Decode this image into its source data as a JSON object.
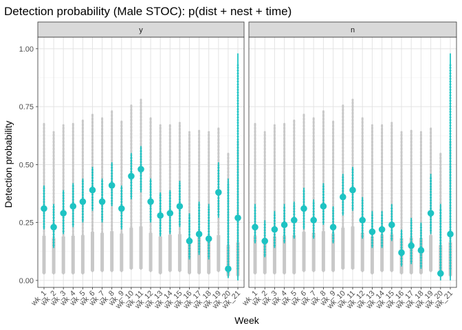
{
  "chart_data": {
    "type": "scatter",
    "title": "Detection probability (Male STOC): p(dist + nest + time)",
    "xlabel": "Week",
    "ylabel": "Detection probability",
    "ylim": [
      -0.03,
      1.05
    ],
    "yticks": [
      0.0,
      0.25,
      0.5,
      0.75,
      1.0
    ],
    "ytick_labels": [
      "0.00",
      "0.25",
      "0.50",
      "0.75",
      "1.00"
    ],
    "grid": true,
    "categories": [
      "wk_1",
      "wk_2",
      "wk_3",
      "wk_4",
      "wk_5",
      "wk_6",
      "wk_7",
      "wk_8",
      "wk_9",
      "wk_10",
      "wk_11",
      "wk_12",
      "wk_13",
      "wk_14",
      "wk_15",
      "wk_16",
      "wk_17",
      "wk_18",
      "wk_19",
      "wk_20",
      "wk_21"
    ],
    "colors": {
      "point": "#1ec3c3",
      "interval": "#1ec3c3",
      "background_points": "#c8c8c8",
      "strip": "#d9d9d9"
    },
    "panels": [
      {
        "strip_label": "y",
        "estimate": [
          0.31,
          0.23,
          0.29,
          0.32,
          0.34,
          0.39,
          0.34,
          0.41,
          0.31,
          0.45,
          0.48,
          0.34,
          0.28,
          0.29,
          0.32,
          0.17,
          0.2,
          0.18,
          0.38,
          0.05,
          0.27
        ],
        "lower": [
          0.22,
          0.14,
          0.2,
          0.23,
          0.25,
          0.3,
          0.25,
          0.32,
          0.22,
          0.35,
          0.38,
          0.25,
          0.19,
          0.2,
          0.23,
          0.09,
          0.11,
          0.09,
          0.27,
          0.01,
          0.0
        ],
        "upper": [
          0.41,
          0.33,
          0.39,
          0.42,
          0.44,
          0.49,
          0.44,
          0.51,
          0.41,
          0.55,
          0.58,
          0.44,
          0.38,
          0.39,
          0.43,
          0.29,
          0.34,
          0.33,
          0.51,
          0.44,
          0.98
        ],
        "background_lower": [
          0.03,
          0.03,
          0.03,
          0.03,
          0.03,
          0.04,
          0.04,
          0.04,
          0.04,
          0.05,
          0.05,
          0.04,
          0.03,
          0.04,
          0.04,
          0.03,
          0.03,
          0.03,
          0.04,
          0.02,
          0.02
        ],
        "background_upper": [
          0.68,
          0.64,
          0.67,
          0.68,
          0.69,
          0.72,
          0.7,
          0.73,
          0.69,
          0.76,
          0.78,
          0.7,
          0.67,
          0.67,
          0.68,
          0.64,
          0.65,
          0.64,
          0.66,
          0.55,
          0.6
        ]
      },
      {
        "strip_label": "n",
        "estimate": [
          0.23,
          0.17,
          0.22,
          0.24,
          0.26,
          0.31,
          0.26,
          0.32,
          0.23,
          0.36,
          0.39,
          0.26,
          0.21,
          0.22,
          0.24,
          0.12,
          0.15,
          0.13,
          0.29,
          0.03,
          0.2
        ],
        "lower": [
          0.16,
          0.1,
          0.14,
          0.16,
          0.18,
          0.22,
          0.18,
          0.24,
          0.16,
          0.28,
          0.3,
          0.18,
          0.14,
          0.14,
          0.17,
          0.06,
          0.07,
          0.05,
          0.2,
          0.0,
          0.0
        ],
        "upper": [
          0.33,
          0.26,
          0.3,
          0.33,
          0.34,
          0.4,
          0.35,
          0.42,
          0.32,
          0.46,
          0.49,
          0.36,
          0.3,
          0.3,
          0.33,
          0.22,
          0.27,
          0.25,
          0.46,
          0.33,
          0.98
        ],
        "background_lower": [
          0.03,
          0.03,
          0.03,
          0.03,
          0.03,
          0.04,
          0.04,
          0.04,
          0.04,
          0.05,
          0.05,
          0.04,
          0.03,
          0.04,
          0.04,
          0.03,
          0.03,
          0.03,
          0.04,
          0.02,
          0.02
        ],
        "background_upper": [
          0.68,
          0.64,
          0.67,
          0.68,
          0.69,
          0.72,
          0.7,
          0.73,
          0.69,
          0.76,
          0.78,
          0.7,
          0.67,
          0.67,
          0.68,
          0.64,
          0.65,
          0.64,
          0.66,
          0.55,
          0.6
        ]
      }
    ]
  }
}
